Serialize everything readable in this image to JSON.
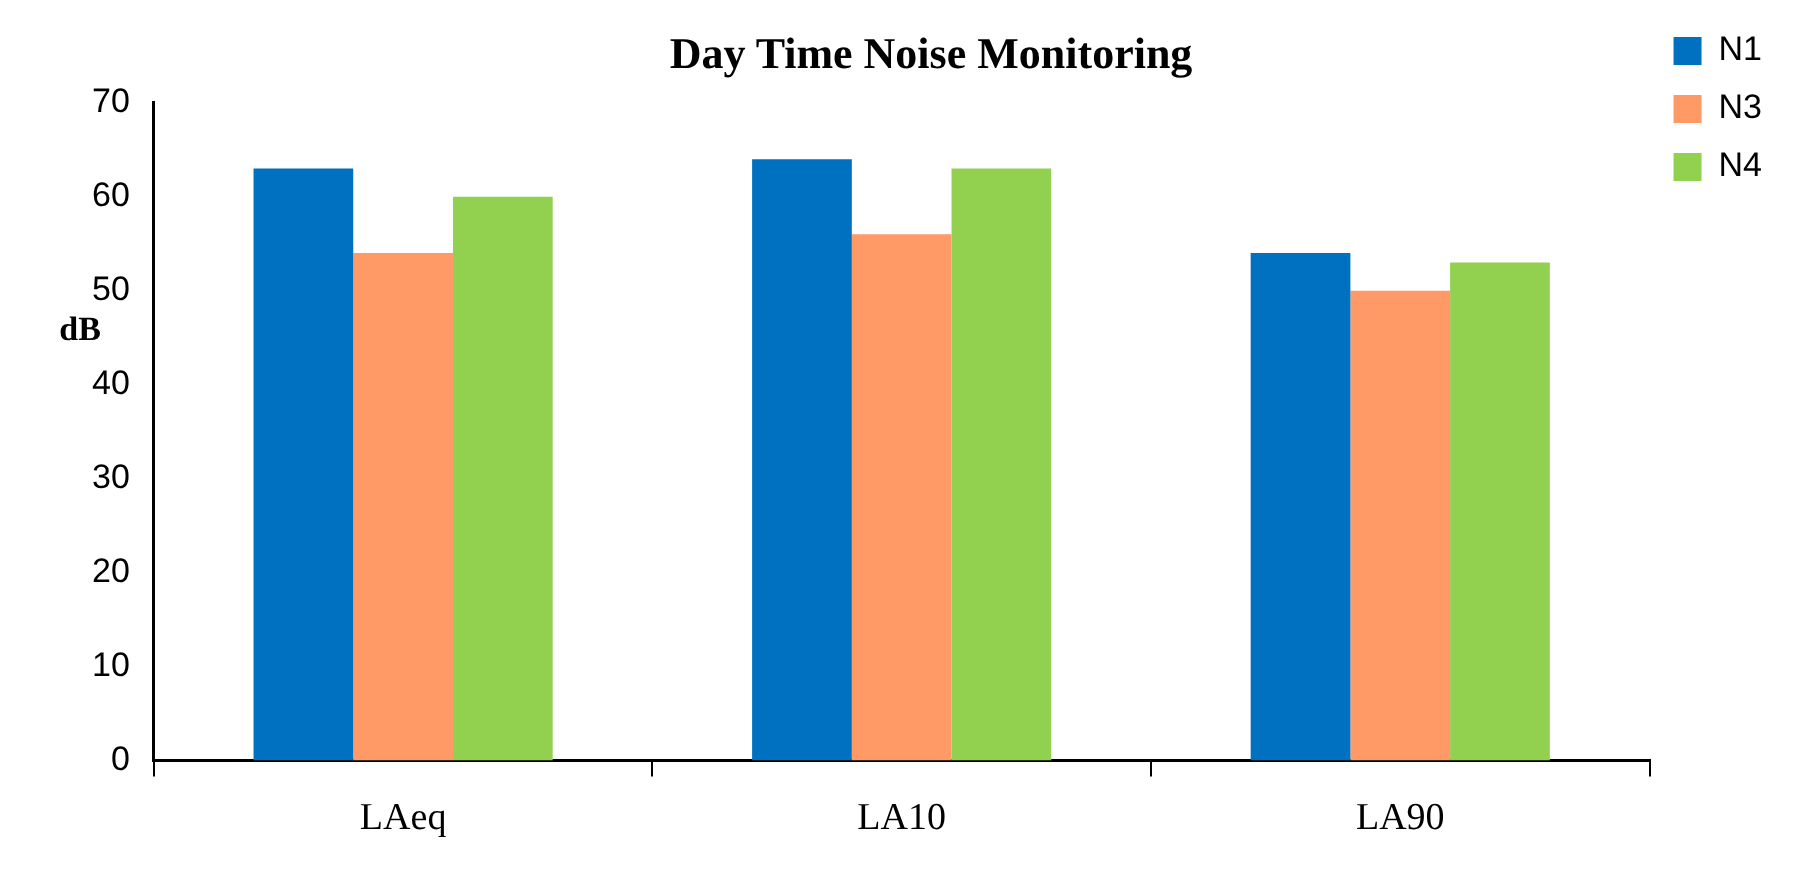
{
  "chart_data": {
    "type": "bar",
    "title": "Day Time Noise Monitoring",
    "ylabel": "dB",
    "categories": [
      "LAeq",
      "LA10",
      "LA90"
    ],
    "series": [
      {
        "name": "N1",
        "color": "#0070c0",
        "values": [
          63,
          64,
          54
        ]
      },
      {
        "name": "N3",
        "color": "#ff9966",
        "values": [
          54,
          56,
          50
        ]
      },
      {
        "name": "N4",
        "color": "#92d050",
        "values": [
          60,
          63,
          53
        ]
      }
    ],
    "ylim": [
      0,
      70
    ],
    "yticks": [
      0,
      10,
      20,
      30,
      40,
      50,
      60,
      70
    ],
    "grid": false,
    "legend": "top right"
  }
}
